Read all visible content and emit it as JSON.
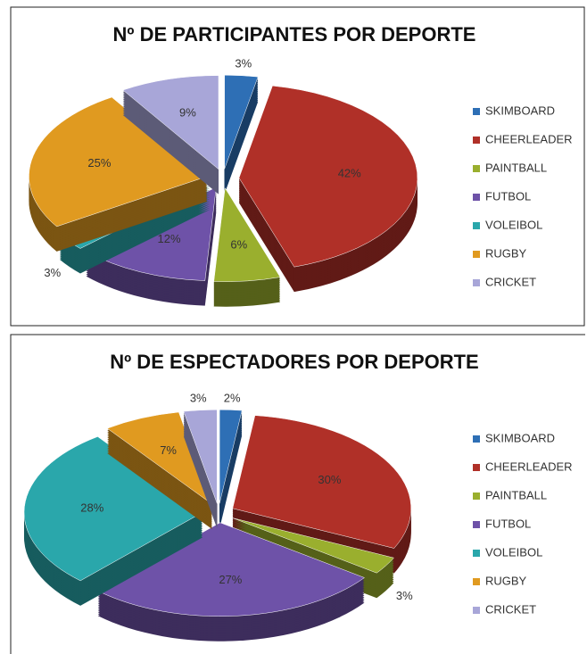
{
  "chart_data": [
    {
      "type": "pie",
      "title": "Nº DE PARTICIPANTES POR DEPORTE",
      "categories": [
        "SKIMBOARD",
        "CHEERLEADER",
        "PAINTBALL",
        "FUTBOL",
        "VOLEIBOL",
        "RUGBY",
        "CRICKET"
      ],
      "values": [
        3,
        42,
        6,
        12,
        3,
        25,
        9
      ],
      "value_labels": [
        "3%",
        "42%",
        "6%",
        "12%",
        "3%",
        "25%",
        "9%"
      ],
      "colors": [
        "#2e6fb5",
        "#b03028",
        "#9aaf2e",
        "#6e52a8",
        "#2aa7ab",
        "#e09a20",
        "#a8a6d8"
      ],
      "legend": "right"
    },
    {
      "type": "pie",
      "title": "Nº DE ESPECTADORES  POR DEPORTE",
      "categories": [
        "SKIMBOARD",
        "CHEERLEADER",
        "PAINTBALL",
        "FUTBOL",
        "VOLEIBOL",
        "RUGBY",
        "CRICKET"
      ],
      "values": [
        2,
        30,
        3,
        27,
        28,
        7,
        3
      ],
      "value_labels": [
        "2%",
        "30%",
        "3%",
        "27%",
        "28%",
        "7%",
        "3%"
      ],
      "colors": [
        "#2e6fb5",
        "#b03028",
        "#9aaf2e",
        "#6e52a8",
        "#2aa7ab",
        "#e09a20",
        "#a8a6d8"
      ],
      "legend": "right"
    }
  ]
}
